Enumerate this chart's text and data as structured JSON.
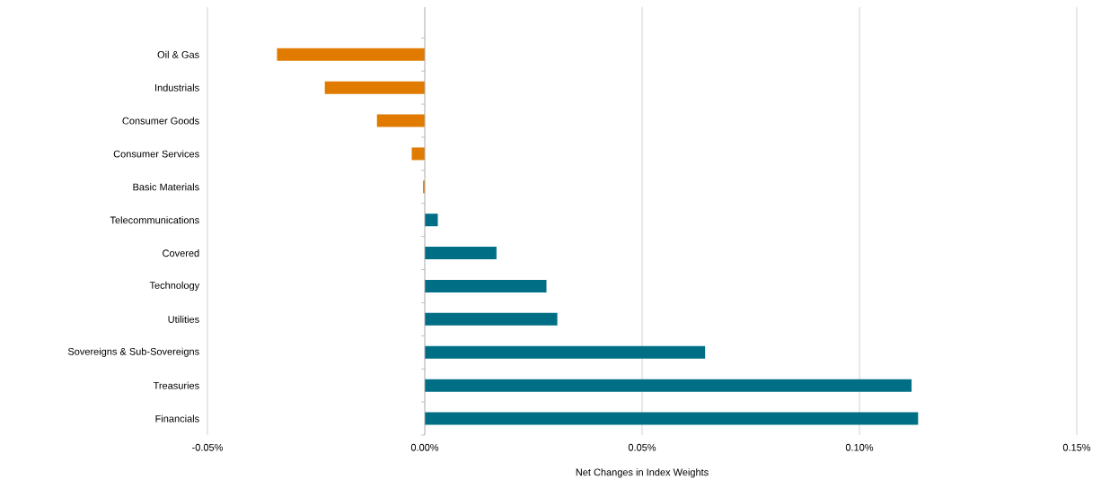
{
  "chart_data": {
    "type": "bar",
    "orientation": "horizontal",
    "xlabel": "Net Changes in Index Weights",
    "categories": [
      "Oil & Gas",
      "Industrials",
      "Consumer Goods",
      "Consumer Services",
      "Basic Materials",
      "Telecommunications",
      "Covered",
      "Technology",
      "Utilities",
      "Sovereigns & Sub-Sovereigns",
      "Treasuries",
      "Financials"
    ],
    "values": [
      -0.034,
      -0.023,
      -0.011,
      -0.003,
      -0.0004,
      0.003,
      0.0165,
      0.028,
      0.0305,
      0.0645,
      0.112,
      0.1135
    ],
    "colors": [
      "#e07b00",
      "#e07b00",
      "#e07b00",
      "#e07b00",
      "#e07b00",
      "#006f86",
      "#006f86",
      "#006f86",
      "#006f86",
      "#006f86",
      "#006f86",
      "#006f86"
    ],
    "xlim": [
      -0.05,
      0.15
    ],
    "xticks": [
      {
        "value": -0.05,
        "label": "-0.05%"
      },
      {
        "value": 0,
        "label": "0.00%"
      },
      {
        "value": 0.05,
        "label": "0.05%"
      },
      {
        "value": 0.1,
        "label": "0.10%"
      },
      {
        "value": 0.15,
        "label": "0.15%"
      }
    ],
    "grid": "x"
  }
}
